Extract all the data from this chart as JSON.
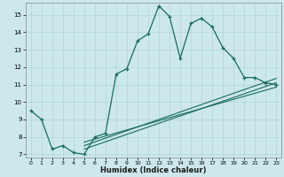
{
  "xlabel": "Humidex (Indice chaleur)",
  "bg_color": "#cce8ec",
  "line_color": "#1a6b5e",
  "xlim": [
    -0.5,
    23.5
  ],
  "ylim": [
    6.8,
    15.7
  ],
  "xticks": [
    0,
    1,
    2,
    3,
    4,
    5,
    6,
    7,
    8,
    9,
    10,
    11,
    12,
    13,
    14,
    15,
    16,
    17,
    18,
    19,
    20,
    21,
    22,
    23
  ],
  "yticks": [
    7,
    8,
    9,
    10,
    11,
    12,
    13,
    14,
    15
  ],
  "series": [
    {
      "x": [
        0,
        1,
        2,
        3,
        4,
        5,
        6,
        7,
        8,
        9,
        10,
        11,
        12,
        13,
        14,
        15,
        16,
        17,
        18,
        19,
        20,
        21,
        22,
        23
      ],
      "y": [
        9.5,
        9.0,
        7.3,
        7.5,
        7.1,
        7.0,
        8.0,
        8.2,
        11.6,
        11.9,
        13.5,
        13.9,
        15.5,
        14.9,
        12.5,
        14.5,
        14.8,
        14.3,
        13.1,
        12.5,
        11.4,
        11.4,
        11.1,
        11.0
      ],
      "marker": true
    },
    {
      "x": [
        5,
        23
      ],
      "y": [
        7.3,
        11.1
      ],
      "marker": false
    },
    {
      "x": [
        5,
        23
      ],
      "y": [
        7.5,
        11.35
      ],
      "marker": false
    },
    {
      "x": [
        5,
        23
      ],
      "y": [
        7.7,
        10.85
      ],
      "marker": false
    }
  ]
}
